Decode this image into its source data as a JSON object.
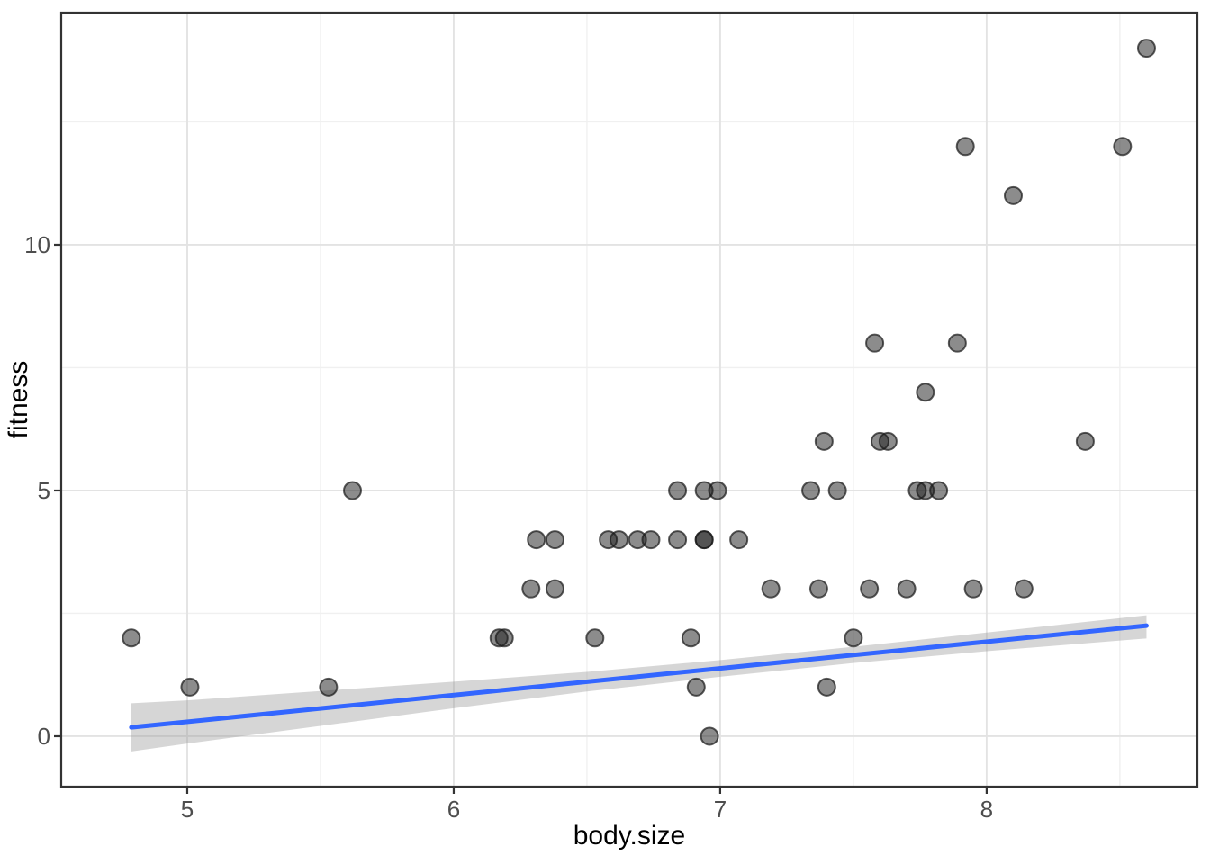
{
  "figure": {
    "background": "#ffffff"
  },
  "chart_data": {
    "type": "scatter",
    "title": "",
    "xlabel": "body.size",
    "ylabel": "fitness",
    "x_ticks": [
      5,
      6,
      7,
      8
    ],
    "x_tick_labels": [
      "5",
      "6",
      "7",
      "8"
    ],
    "y_ticks": [
      0,
      5,
      10
    ],
    "y_tick_labels": [
      "0",
      "5",
      "10"
    ],
    "x_minor": [
      5.5,
      6.5,
      7.5,
      8.5
    ],
    "y_minor": [
      2.5,
      7.5,
      12.5
    ],
    "xlim": [
      4.527,
      8.791
    ],
    "ylim": [
      -1.026,
      14.725
    ],
    "grid": true,
    "legend": "none",
    "points": [
      [
        8.6,
        14
      ],
      [
        7.92,
        12
      ],
      [
        8.51,
        12
      ],
      [
        8.1,
        11
      ],
      [
        7.58,
        8
      ],
      [
        7.89,
        8
      ],
      [
        7.77,
        7
      ],
      [
        7.39,
        6
      ],
      [
        7.6,
        6
      ],
      [
        7.63,
        6
      ],
      [
        8.37,
        6
      ],
      [
        5.62,
        5
      ],
      [
        6.84,
        5
      ],
      [
        6.94,
        5
      ],
      [
        6.99,
        5
      ],
      [
        7.34,
        5
      ],
      [
        7.44,
        5
      ],
      [
        7.74,
        5
      ],
      [
        7.77,
        5
      ],
      [
        7.82,
        5
      ],
      [
        6.31,
        4
      ],
      [
        6.38,
        4
      ],
      [
        6.58,
        4
      ],
      [
        6.62,
        4
      ],
      [
        6.69,
        4
      ],
      [
        6.74,
        4
      ],
      [
        6.84,
        4
      ],
      [
        6.94,
        4
      ],
      [
        6.94,
        4
      ],
      [
        7.07,
        4
      ],
      [
        6.29,
        3
      ],
      [
        6.38,
        3
      ],
      [
        7.19,
        3
      ],
      [
        7.37,
        3
      ],
      [
        7.56,
        3
      ],
      [
        7.7,
        3
      ],
      [
        7.95,
        3
      ],
      [
        8.14,
        3
      ],
      [
        4.79,
        2
      ],
      [
        6.17,
        2
      ],
      [
        6.19,
        2
      ],
      [
        6.53,
        2
      ],
      [
        6.89,
        2
      ],
      [
        7.5,
        2
      ],
      [
        5.01,
        1
      ],
      [
        5.53,
        1
      ],
      [
        6.91,
        1
      ],
      [
        7.4,
        1
      ],
      [
        6.96,
        0
      ]
    ],
    "trend": {
      "type": "linear",
      "x1": 4.79,
      "y1": 0.18,
      "x2": 8.6,
      "y2": 2.25,
      "slope": 0.543,
      "intercept": -2.42
    },
    "ci_band": {
      "x": [
        4.79,
        5.0,
        5.5,
        6.0,
        6.5,
        7.0,
        7.5,
        8.0,
        8.6
      ],
      "upper": [
        0.67,
        0.73,
        0.92,
        1.11,
        1.31,
        1.55,
        1.82,
        2.11,
        2.46
      ],
      "lower": [
        -0.31,
        -0.15,
        0.21,
        0.57,
        0.91,
        1.21,
        1.49,
        1.73,
        1.99
      ]
    }
  },
  "style": {
    "panel_background": "#ffffff",
    "grid_major_color": "#e3e3e3",
    "grid_minor_color": "#f0f0f0",
    "panel_border_color": "#333333",
    "tick_color": "#333333",
    "tick_label_color": "#4d4d4d",
    "axis_title_color": "#000000",
    "point_color": "#1a1a1a",
    "point_fill_opacity": 0.5,
    "point_stroke_opacity": 0.72,
    "trend_line_color": "#3366FF",
    "ci_fill_color": "#999999",
    "ci_fill_opacity": 0.4
  }
}
